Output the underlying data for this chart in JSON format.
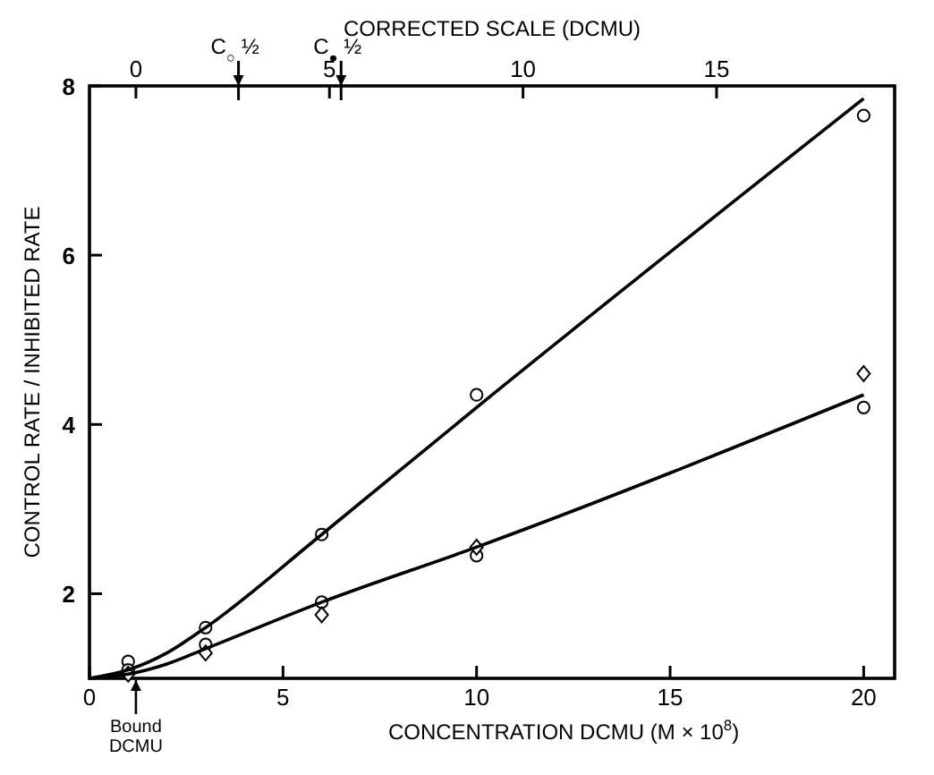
{
  "chart_data": {
    "type": "scatter",
    "xlabel": "CONCENTRATION DCMU  (M × 10$^{8}$)",
    "ylabel": "CONTROL RATE / INHIBITED RATE",
    "x2label": "CORRECTED SCALE (DCMU)",
    "xlim": [
      0,
      20.8
    ],
    "xticks": [
      0,
      5,
      10,
      15,
      20
    ],
    "x2lim": [
      -1.2,
      19.6
    ],
    "x2ticks": [
      0,
      5,
      10,
      15
    ],
    "ylim": [
      1,
      8
    ],
    "yticks": [
      2,
      4,
      6,
      8
    ],
    "grid": false,
    "series": [
      {
        "marker": "circle",
        "color": "#000000",
        "x": [
          1,
          3,
          6,
          10,
          20
        ],
        "values": [
          1.2,
          1.6,
          2.7,
          4.35,
          7.65
        ]
      },
      {
        "marker": "circle",
        "color": "#000000",
        "x": [
          1,
          3,
          6,
          10,
          20
        ],
        "values": [
          1.1,
          1.4,
          1.9,
          2.45,
          4.2
        ]
      },
      {
        "marker": "diamond",
        "color": "#000000",
        "x": [
          1,
          3,
          6,
          10,
          20
        ],
        "values": [
          1.05,
          1.3,
          1.75,
          2.55,
          4.6
        ]
      },
      {
        "type": "line",
        "marker": "none",
        "color": "#000000",
        "x": [
          0,
          1,
          2,
          3,
          6,
          10,
          20
        ],
        "values": [
          1,
          1.1,
          1.3,
          1.6,
          2.7,
          4.2,
          7.85
        ]
      },
      {
        "type": "line",
        "marker": "none",
        "color": "#000000",
        "x": [
          0,
          1,
          2,
          3,
          6,
          10,
          20
        ],
        "values": [
          1,
          1.05,
          1.17,
          1.35,
          1.9,
          2.55,
          4.35
        ]
      }
    ],
    "ref_lines": [
      {
        "axis": "x2",
        "value": 2.65,
        "label": "C$_{○}$ ½"
      },
      {
        "axis": "x2",
        "value": 5.3,
        "label": "C$_{●}$ ½"
      },
      {
        "axis": "x",
        "value": 1.2,
        "label": "Bound DCMU"
      }
    ]
  }
}
